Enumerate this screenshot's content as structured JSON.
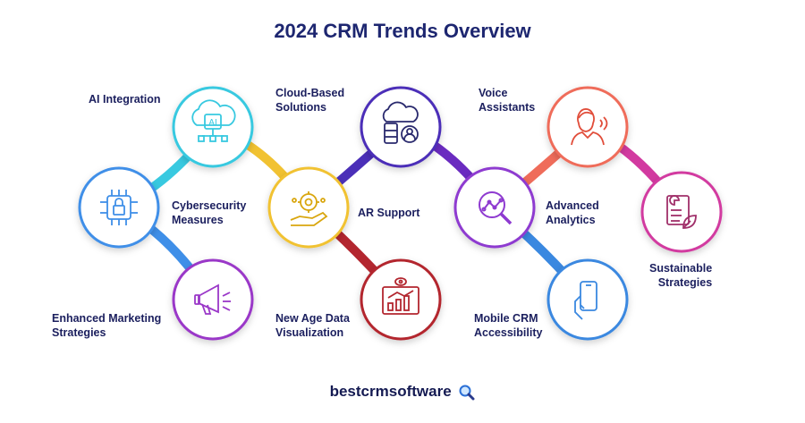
{
  "title": "2024 CRM Trends Overview",
  "trends": [
    {
      "label": "AI Integration",
      "color": "#38c9e0",
      "icon": "ai-cloud-icon"
    },
    {
      "label": "Cybersecurity\nMeasures",
      "color": "#3f8fe8",
      "icon": "security-chip-icon"
    },
    {
      "label": "Enhanced Marketing\nStrategies",
      "color": "#9a37c8",
      "icon": "megaphone-icon"
    },
    {
      "label": "Cloud-Based\nSolutions",
      "color": "#4b2fb8",
      "icon": "cloud-server-icon"
    },
    {
      "label": "AR Support",
      "color": "#f1c232",
      "icon": "gear-hand-icon"
    },
    {
      "label": "New Age Data\nVisualization",
      "color": "#b3262f",
      "icon": "data-chart-icon"
    },
    {
      "label": "Voice\nAssistants",
      "color": "#ef6c5a",
      "icon": "voice-person-icon"
    },
    {
      "label": "Advanced\nAnalytics",
      "color": "#8e3ad0",
      "icon": "magnifier-analytics-icon"
    },
    {
      "label": "Mobile CRM\nAccessibility",
      "color": "#3a88e0",
      "icon": "mobile-hand-icon"
    },
    {
      "label": "Sustainable\nStrategies",
      "color": "#d23aa0",
      "icon": "eco-document-icon"
    }
  ],
  "brand": "bestcrmsoftware"
}
